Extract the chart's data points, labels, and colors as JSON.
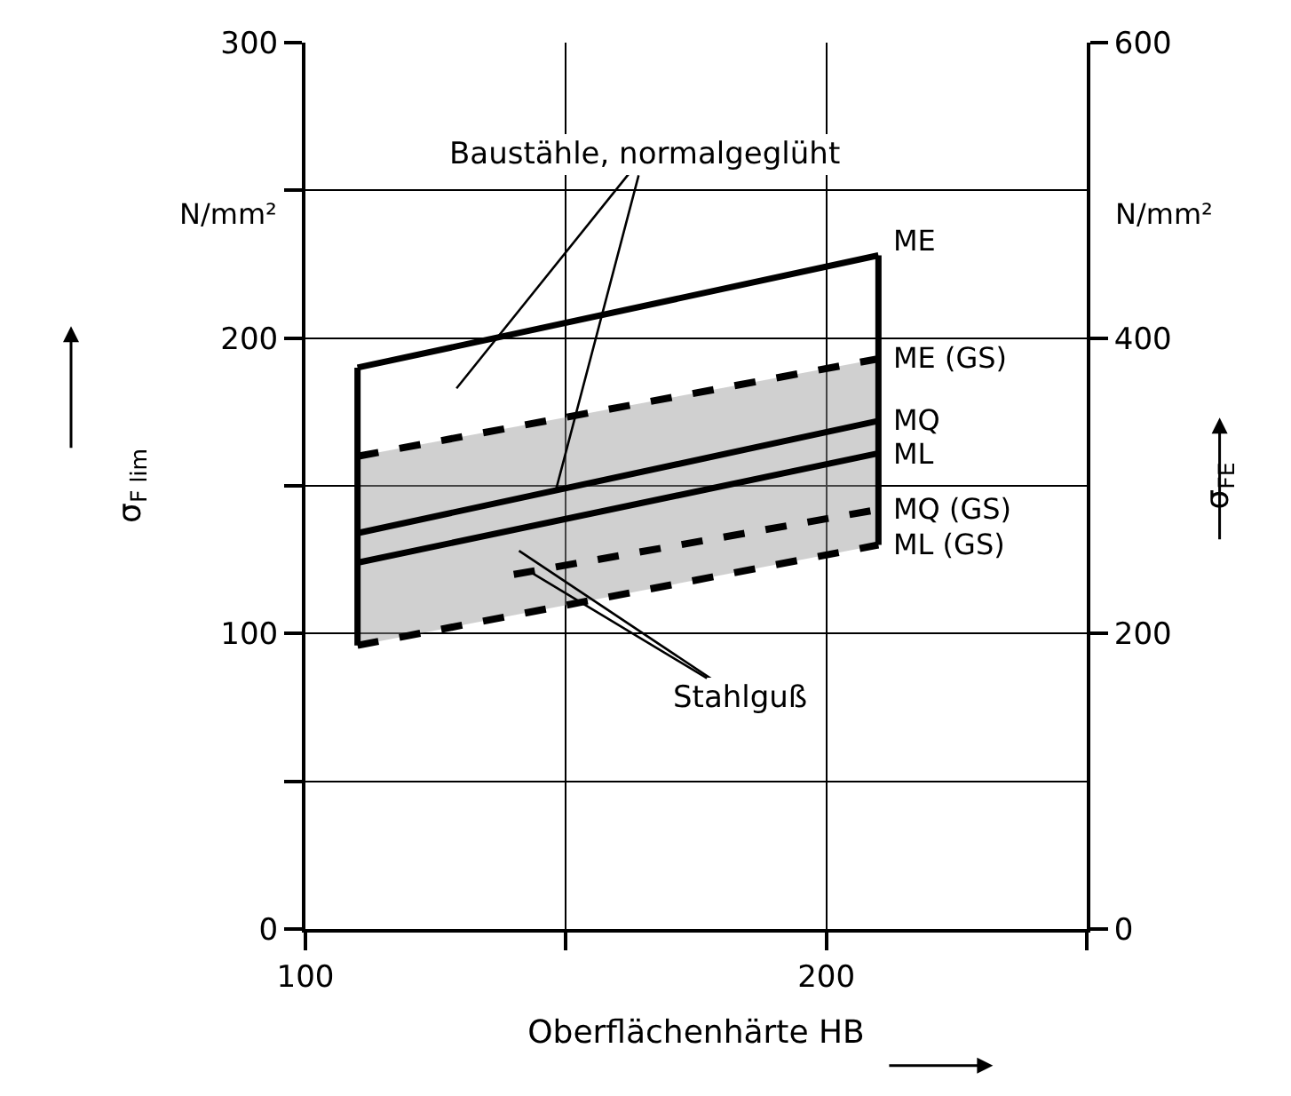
{
  "chart_data": {
    "type": "line",
    "xlabel": "Oberflächenhärte HB",
    "ylabel": "σ$_{F lim}$",
    "y2label": "σ$_{FE}$",
    "xlim": [
      100,
      250
    ],
    "xticks": [
      100,
      {
        "value": 150,
        "label": null
      },
      200,
      {
        "value": 250,
        "label": null
      }
    ],
    "ylim": [
      0,
      300
    ],
    "yticks": [
      0,
      {
        "value": 50,
        "label": null
      },
      100,
      {
        "value": 150,
        "label": null
      },
      200,
      {
        "value": 250,
        "label": null
      },
      300
    ],
    "y2lim": [
      0,
      600
    ],
    "y2ticks": [
      0,
      200,
      400,
      600
    ],
    "grid": true,
    "legend": false,
    "marker": "none",
    "series": [
      {
        "name": "ME",
        "color": "#000000",
        "x": [
          110,
          210
        ],
        "values": [
          190,
          228
        ],
        "line_style": "solid"
      },
      {
        "name": "ME (GS)",
        "color": "#000000",
        "x": [
          110,
          210
        ],
        "values": [
          160,
          193
        ],
        "line_style": "dashed",
        "lower": [
          96,
          130
        ],
        "upper": [
          160,
          193
        ]
      },
      {
        "name": "MQ",
        "color": "#000000",
        "x": [
          110,
          210
        ],
        "values": [
          134,
          172
        ],
        "line_style": "solid"
      },
      {
        "name": "ML",
        "color": "#000000",
        "x": [
          110,
          210
        ],
        "values": [
          124,
          161
        ],
        "line_style": "solid"
      },
      {
        "name": "MQ (GS)",
        "color": "#000000",
        "x": [
          140,
          210
        ],
        "values": [
          120,
          142
        ],
        "line_style": "dashed"
      },
      {
        "name": "ML (GS)",
        "color": "#000000",
        "x": [
          110,
          210
        ],
        "values": [
          96,
          130
        ],
        "line_style": "dashed"
      },
      {
        "color": "#000000",
        "x": [
          110,
          110
        ],
        "values": [
          96,
          190
        ],
        "line_style": "solid"
      },
      {
        "color": "#000000",
        "x": [
          210,
          210
        ],
        "values": [
          130,
          228
        ],
        "line_style": "solid"
      }
    ],
    "annotations": [
      {
        "text": "Baustähle, normalgeglüht",
        "x": 148,
        "y": 148
      },
      {
        "text": "Stahlguß",
        "x": 143,
        "y": 121
      },
      "N/mm²",
      "N/mm²"
    ]
  }
}
